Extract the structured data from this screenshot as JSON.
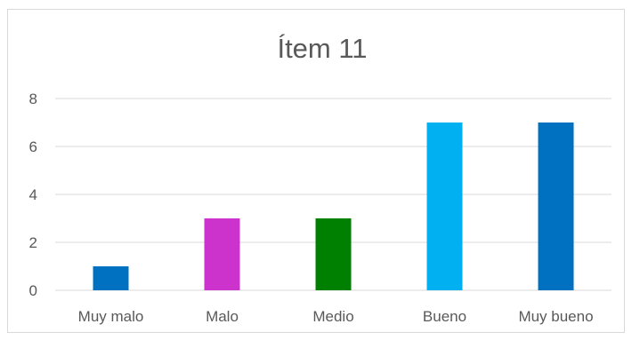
{
  "chart_data": {
    "type": "bar",
    "title": "Ítem 11",
    "xlabel": "",
    "ylabel": "",
    "categories": [
      "Muy malo",
      "Malo",
      "Medio",
      "Bueno",
      "Muy bueno"
    ],
    "values": [
      1,
      3,
      3,
      7,
      7
    ],
    "bar_colors": [
      "#0070c0",
      "#cc33cc",
      "#008000",
      "#00b0f0",
      "#0070c0"
    ],
    "ylim": [
      0,
      8
    ],
    "yticks": [
      "0",
      "2",
      "4",
      "6",
      "8"
    ],
    "grid": true,
    "legend": "none",
    "colors": {
      "grid": "#d9d9d9",
      "text": "#595959",
      "border": "#d9d9d9"
    }
  }
}
